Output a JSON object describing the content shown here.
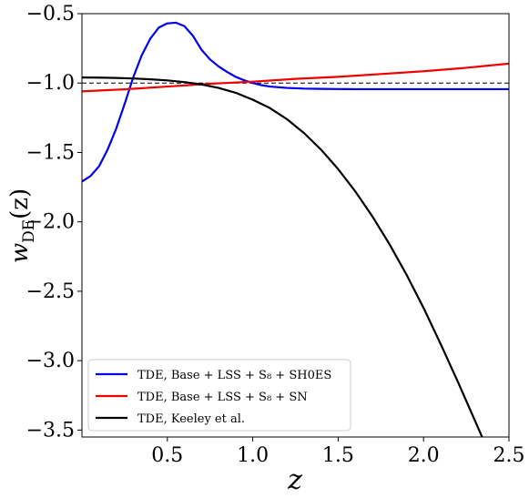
{
  "chart_data": {
    "type": "line",
    "xlabel": "z",
    "ylabel_main": "w",
    "ylabel_sub": "DE",
    "ylabel_arg": "(z)",
    "xlim": [
      0.0,
      2.5
    ],
    "ylim": [
      -3.55,
      -0.5
    ],
    "xticks": [
      0.5,
      1.0,
      1.5,
      2.0,
      2.5
    ],
    "xtick_labels": [
      "0.5",
      "1.0",
      "1.5",
      "2.0",
      "2.5"
    ],
    "yticks": [
      -0.5,
      -1.0,
      -1.5,
      -2.0,
      -2.5,
      -3.0,
      -3.5
    ],
    "ytick_labels": [
      "−0.5",
      "−1.0",
      "−1.5",
      "−2.0",
      "−2.5",
      "−3.0",
      "−3.5"
    ],
    "grid": false,
    "legend_position": "lower-left",
    "reference_line": {
      "y": -1.0,
      "style": "dashed",
      "color": "#000000"
    },
    "series": [
      {
        "name": "TDE,  Base + LSS + S₈ + SH0ES",
        "color": "#0000ee",
        "x": [
          0.0,
          0.05,
          0.1,
          0.15,
          0.2,
          0.25,
          0.3,
          0.35,
          0.4,
          0.45,
          0.5,
          0.55,
          0.6,
          0.65,
          0.7,
          0.75,
          0.8,
          0.85,
          0.9,
          0.95,
          1.0,
          1.05,
          1.1,
          1.15,
          1.2,
          1.3,
          1.4,
          1.5,
          1.6,
          1.8,
          2.0,
          2.25,
          2.5
        ],
        "y": [
          -1.71,
          -1.67,
          -1.6,
          -1.48,
          -1.33,
          -1.15,
          -0.96,
          -0.8,
          -0.68,
          -0.6,
          -0.57,
          -0.565,
          -0.59,
          -0.66,
          -0.76,
          -0.83,
          -0.88,
          -0.92,
          -0.955,
          -0.98,
          -1.0,
          -1.015,
          -1.025,
          -1.03,
          -1.035,
          -1.04,
          -1.042,
          -1.043,
          -1.044,
          -1.044,
          -1.044,
          -1.044,
          -1.044
        ]
      },
      {
        "name": "TDE,  Base + LSS + S₈ + SN",
        "color": "#ee0000",
        "x": [
          0.0,
          0.25,
          0.5,
          0.75,
          1.0,
          1.25,
          1.5,
          1.75,
          2.0,
          2.25,
          2.5
        ],
        "y": [
          -1.06,
          -1.045,
          -1.025,
          -1.005,
          -0.99,
          -0.97,
          -0.955,
          -0.935,
          -0.915,
          -0.89,
          -0.86
        ]
      },
      {
        "name": "TDE,  Keeley et al.",
        "color": "#000000",
        "x": [
          0.0,
          0.1,
          0.2,
          0.3,
          0.4,
          0.5,
          0.6,
          0.7,
          0.8,
          0.9,
          1.0,
          1.1,
          1.2,
          1.3,
          1.4,
          1.5,
          1.6,
          1.7,
          1.8,
          1.9,
          2.0,
          2.1,
          2.2,
          2.3,
          2.35
        ],
        "y": [
          -0.96,
          -0.961,
          -0.963,
          -0.967,
          -0.973,
          -0.981,
          -0.993,
          -1.01,
          -1.035,
          -1.07,
          -1.12,
          -1.18,
          -1.26,
          -1.36,
          -1.48,
          -1.62,
          -1.78,
          -1.96,
          -2.16,
          -2.38,
          -2.62,
          -2.88,
          -3.15,
          -3.43,
          -3.57
        ]
      }
    ]
  }
}
